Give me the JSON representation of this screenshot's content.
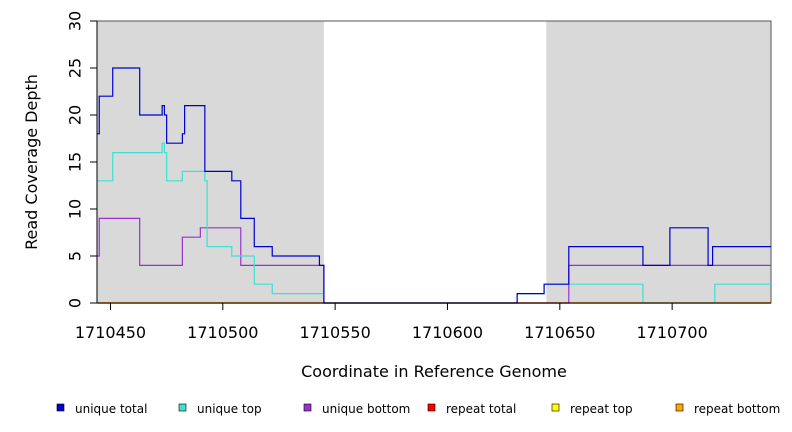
{
  "chart_data": {
    "type": "line",
    "title": "",
    "xlabel": "Coordinate in Reference Genome",
    "ylabel": "Read Coverage Depth",
    "xlim": [
      1710444,
      1710744
    ],
    "ylim": [
      0,
      30
    ],
    "x_ticks": [
      1710450,
      1710500,
      1710550,
      1710600,
      1710650,
      1710700
    ],
    "y_ticks": [
      0,
      5,
      10,
      15,
      20,
      25,
      30
    ],
    "shaded_regions": [
      [
        1710444,
        1710545
      ],
      [
        1710644,
        1710744
      ]
    ],
    "shade_color": "#d9d9d9",
    "grid": false,
    "legend_position": "bottom",
    "series": [
      {
        "name": "unique total",
        "color": "#0000cd",
        "points": [
          [
            1710444,
            18
          ],
          [
            1710445,
            22
          ],
          [
            1710451,
            25
          ],
          [
            1710463,
            20
          ],
          [
            1710473,
            21
          ],
          [
            1710474,
            20
          ],
          [
            1710475,
            17
          ],
          [
            1710482,
            18
          ],
          [
            1710483,
            21
          ],
          [
            1710492,
            14
          ],
          [
            1710504,
            13
          ],
          [
            1710508,
            9
          ],
          [
            1710514,
            6
          ],
          [
            1710522,
            5
          ],
          [
            1710543,
            4
          ],
          [
            1710545,
            0
          ],
          [
            1710631,
            1
          ],
          [
            1710643,
            2
          ],
          [
            1710654,
            6
          ],
          [
            1710687,
            4
          ],
          [
            1710699,
            8
          ],
          [
            1710716,
            4
          ],
          [
            1710718,
            6
          ],
          [
            1710744,
            6
          ]
        ]
      },
      {
        "name": "unique top",
        "color": "#40e0d0",
        "points": [
          [
            1710444,
            13
          ],
          [
            1710451,
            16
          ],
          [
            1710473,
            17
          ],
          [
            1710474,
            16
          ],
          [
            1710475,
            13
          ],
          [
            1710482,
            14
          ],
          [
            1710492,
            13
          ],
          [
            1710493,
            6
          ],
          [
            1710504,
            5
          ],
          [
            1710514,
            2
          ],
          [
            1710522,
            1
          ],
          [
            1710543,
            1
          ],
          [
            1710545,
            0
          ],
          [
            1710631,
            1
          ],
          [
            1710643,
            2
          ],
          [
            1710687,
            0
          ],
          [
            1710719,
            2
          ],
          [
            1710744,
            2
          ]
        ]
      },
      {
        "name": "unique bottom",
        "color": "#9932cc",
        "points": [
          [
            1710444,
            5
          ],
          [
            1710445,
            9
          ],
          [
            1710463,
            4
          ],
          [
            1710482,
            7
          ],
          [
            1710490,
            8
          ],
          [
            1710508,
            4
          ],
          [
            1710543,
            4
          ],
          [
            1710545,
            0
          ],
          [
            1710654,
            4
          ],
          [
            1710744,
            4
          ]
        ]
      },
      {
        "name": "repeat total",
        "color": "#ff0000",
        "points": [
          [
            1710444,
            0
          ],
          [
            1710744,
            0
          ]
        ]
      },
      {
        "name": "repeat top",
        "color": "#ffff00",
        "points": [
          [
            1710444,
            0
          ],
          [
            1710744,
            0
          ]
        ]
      },
      {
        "name": "repeat bottom",
        "color": "#ffa500",
        "points": [
          [
            1710444,
            0
          ],
          [
            1710744,
            0
          ]
        ]
      }
    ]
  }
}
